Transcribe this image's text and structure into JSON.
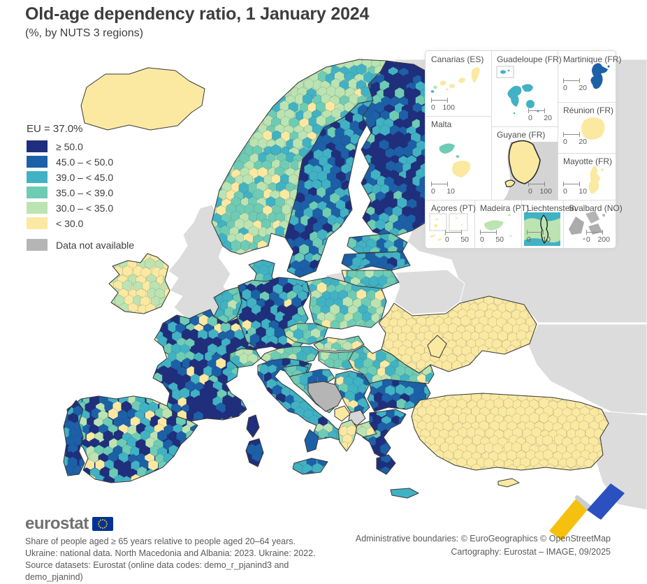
{
  "title": "Old-age dependency ratio, 1 January 2024",
  "subtitle": "(%, by NUTS 3 regions)",
  "legend": {
    "eu_value_label": "EU = 37.0%",
    "classes": [
      {
        "key": "ge50",
        "label": "≥ 50.0",
        "color": "#1f2e7d"
      },
      {
        "key": "c45_50",
        "label": "45.0 – < 50.0",
        "color": "#1c60a8"
      },
      {
        "key": "c39_45",
        "label": "39.0 – < 45.0",
        "color": "#41b2c4"
      },
      {
        "key": "c35_39",
        "label": "35.0 – < 39.0",
        "color": "#6fccb4"
      },
      {
        "key": "c30_35",
        "label": "30.0 – < 35.0",
        "color": "#bce4b2"
      },
      {
        "key": "lt30",
        "label": "< 30.0",
        "color": "#fbe9a2"
      }
    ],
    "no_data": {
      "label": "Data not available",
      "color": "#b5b5b5"
    }
  },
  "map": {
    "sea_color": "#ffffff",
    "non_eu_color": "#dcdcdc",
    "kosovo_color": "#d6d6d6",
    "border_color": "#3a3a3a",
    "countries": [
      {
        "id": "russia-north",
        "name": "Russia",
        "status": "non-eu"
      },
      {
        "id": "russia-south",
        "name": "Russia",
        "status": "non-eu"
      },
      {
        "id": "mideast",
        "name": "Middle East",
        "status": "non-eu"
      },
      {
        "id": "belarus",
        "name": "Belarus",
        "status": "non-eu"
      },
      {
        "id": "kaliningrad",
        "name": "Kaliningrad (Russia)",
        "status": "non-eu"
      },
      {
        "id": "uk",
        "name": "United Kingdom",
        "status": "non-eu"
      },
      {
        "id": "bosnia",
        "name": "Bosnia and Herzegovina",
        "status": "no-data"
      },
      {
        "id": "kosovo",
        "name": "Kosovo",
        "status": "no-data-light"
      },
      {
        "id": "iceland",
        "name": "Iceland",
        "flat": true,
        "classes": {
          "lt30": 1
        }
      },
      {
        "id": "norway",
        "name": "Norway",
        "classes": {
          "c30_35": 0.4,
          "c35_39": 0.3,
          "c39_45": 0.2,
          "lt30": 0.1
        }
      },
      {
        "id": "sweden",
        "name": "Sweden",
        "classes": {
          "c45_50": 0.4,
          "ge50": 0.2,
          "c39_45": 0.3,
          "c35_39": 0.1
        }
      },
      {
        "id": "finland",
        "name": "Finland",
        "classes": {
          "ge50": 0.4,
          "c45_50": 0.3,
          "c39_45": 0.2,
          "c35_39": 0.1
        }
      },
      {
        "id": "estonia",
        "name": "Estonia",
        "classes": {
          "c39_45": 0.5,
          "c45_50": 0.3,
          "c35_39": 0.2
        }
      },
      {
        "id": "latvia",
        "name": "Latvia",
        "classes": {
          "c45_50": 0.5,
          "c39_45": 0.3,
          "ge50": 0.2
        }
      },
      {
        "id": "lithuania",
        "name": "Lithuania",
        "classes": {
          "c39_45": 0.4,
          "c35_39": 0.4,
          "lt30": 0.1,
          "c30_35": 0.1
        }
      },
      {
        "id": "ireland",
        "name": "Ireland",
        "classes": {
          "lt30": 0.55,
          "c30_35": 0.45
        }
      },
      {
        "id": "denmark",
        "name": "Denmark",
        "classes": {
          "c39_45": 0.5,
          "c35_39": 0.5
        }
      },
      {
        "id": "germany",
        "name": "Germany",
        "classes": {
          "ge50": 0.3,
          "c45_50": 0.2,
          "c39_45": 0.3,
          "c35_39": 0.15,
          "lt30": 0.05
        }
      },
      {
        "id": "benelux",
        "name": "Benelux",
        "classes": {
          "c39_45": 0.45,
          "c35_39": 0.3,
          "c30_35": 0.15,
          "lt30": 0.1
        }
      },
      {
        "id": "poland",
        "name": "Poland",
        "classes": {
          "c30_35": 0.35,
          "c35_39": 0.35,
          "c39_45": 0.2,
          "lt30": 0.1
        }
      },
      {
        "id": "czechia",
        "name": "Czechia",
        "classes": {
          "c35_39": 0.55,
          "c39_45": 0.25,
          "c30_35": 0.1,
          "lt30": 0.1
        }
      },
      {
        "id": "slovakia",
        "name": "Slovakia",
        "classes": {
          "c30_35": 0.4,
          "c35_39": 0.35,
          "lt30": 0.15,
          "c39_45": 0.1
        }
      },
      {
        "id": "austria",
        "name": "Austria",
        "classes": {
          "c35_39": 0.5,
          "c39_45": 0.3,
          "c30_35": 0.2
        }
      },
      {
        "id": "switzerland",
        "name": "Switzerland",
        "classes": {
          "c35_39": 0.35,
          "c30_35": 0.3,
          "lt30": 0.2,
          "c39_45": 0.15
        }
      },
      {
        "id": "hungary",
        "name": "Hungary",
        "classes": {
          "c35_39": 0.5,
          "c30_35": 0.3,
          "c39_45": 0.2
        }
      },
      {
        "id": "ukraine",
        "name": "Ukraine",
        "classes": {
          "lt30": 1
        }
      },
      {
        "id": "moldova",
        "name": "Moldova",
        "flat": true,
        "classes": {
          "lt30": 1
        }
      },
      {
        "id": "romania",
        "name": "Romania",
        "classes": {
          "c35_39": 0.4,
          "c39_45": 0.3,
          "c30_35": 0.2,
          "lt30": 0.1
        }
      },
      {
        "id": "bulgaria",
        "name": "Bulgaria",
        "classes": {
          "c45_50": 0.35,
          "ge50": 0.25,
          "c39_45": 0.3,
          "c35_39": 0.1
        }
      },
      {
        "id": "france",
        "name": "France",
        "classes": {
          "ge50": 0.35,
          "c45_50": 0.2,
          "c39_45": 0.25,
          "c35_39": 0.12,
          "lt30": 0.08
        }
      },
      {
        "id": "corsica",
        "name": "Corse (France)",
        "flat": true,
        "classes": {
          "ge50": 1
        }
      },
      {
        "id": "spain",
        "name": "Spain",
        "classes": {
          "ge50": 0.25,
          "c45_50": 0.15,
          "c39_45": 0.2,
          "c35_39": 0.2,
          "c30_35": 0.1,
          "lt30": 0.1
        }
      },
      {
        "id": "portugal",
        "name": "Portugal",
        "classes": {
          "ge50": 0.5,
          "c45_50": 0.3,
          "c39_45": 0.2
        }
      },
      {
        "id": "italy",
        "name": "Italy",
        "classes": {
          "c39_45": 0.35,
          "c45_50": 0.25,
          "ge50": 0.2,
          "c35_39": 0.1,
          "c30_35": 0.1
        }
      },
      {
        "id": "calabria",
        "name": "Calabria (Italy)",
        "flat": true,
        "classes": {
          "c45_50": 1
        }
      },
      {
        "id": "sicily",
        "name": "Sicilia (Italy)",
        "classes": {
          "c39_45": 0.5,
          "c45_50": 0.3,
          "ge50": 0.2
        }
      },
      {
        "id": "sardinia",
        "name": "Sardegna (Italy)",
        "classes": {
          "ge50": 0.5,
          "c45_50": 0.5
        }
      },
      {
        "id": "slovenia",
        "name": "Slovenia",
        "classes": {
          "c35_39": 0.5,
          "c39_45": 0.5
        }
      },
      {
        "id": "croatia",
        "name": "Croatia",
        "classes": {
          "c39_45": 0.5,
          "c35_39": 0.3,
          "c45_50": 0.2
        }
      },
      {
        "id": "serbia",
        "name": "Serbia",
        "classes": {
          "c39_45": 0.35,
          "c35_39": 0.3,
          "c45_50": 0.25,
          "lt30": 0.1
        }
      },
      {
        "id": "montenegro",
        "name": "Montenegro",
        "flat": true,
        "classes": {
          "lt30": 1
        }
      },
      {
        "id": "albania",
        "name": "Albania",
        "classes": {
          "lt30": 0.6,
          "c30_35": 0.4
        }
      },
      {
        "id": "nmacedonia",
        "name": "North Macedonia",
        "classes": {
          "c30_35": 0.5,
          "lt30": 0.5
        }
      },
      {
        "id": "greece",
        "name": "Greece",
        "classes": {
          "ge50": 0.35,
          "c45_50": 0.3,
          "c39_45": 0.25,
          "c35_39": 0.1
        }
      },
      {
        "id": "peloponnese",
        "name": "Peloponnese (Greece)",
        "classes": {
          "ge50": 0.5,
          "c45_50": 0.5
        }
      },
      {
        "id": "crete",
        "name": "Crete (Greece)",
        "flat": true,
        "classes": {
          "c39_45": 1
        }
      },
      {
        "id": "turkey",
        "name": "Türkiye",
        "classes": {
          "lt30": 1
        }
      },
      {
        "id": "cyprus",
        "name": "Cyprus",
        "flat": true,
        "classes": {
          "lt30": 1
        }
      }
    ]
  },
  "insets": {
    "cells": [
      {
        "label": "Canarias (ES)",
        "scale0": "0",
        "scale1": "100"
      },
      {
        "label": "Guadeloupe (FR)",
        "scale0": "0",
        "scale1": "20"
      },
      {
        "label": "Martinique (FR)",
        "scale0": "0",
        "scale1": "20"
      },
      {
        "label": "Malta",
        "scale0": "0",
        "scale1": "10"
      },
      {
        "label": "Guyane (FR)",
        "scale0": "0",
        "scale1": "100"
      },
      {
        "label": "Réunion (FR)",
        "scale0": "0",
        "scale1": "20"
      },
      {
        "label": "Mayotte (FR)",
        "scale0": "0",
        "scale1": "10"
      },
      {
        "label": "Açores (PT)",
        "scale0": "0",
        "scale1": "50"
      },
      {
        "label": "Madeira (PT)",
        "scale0": "0",
        "scale1": "50"
      },
      {
        "label": "Liechtenstein",
        "scale0": "0",
        "scale1": "10"
      },
      {
        "label": "Svalbard (NO)",
        "scale0": "0",
        "scale1": "200"
      }
    ]
  },
  "footer": {
    "logo_text": "eurostat",
    "note1": "Share of people aged ≥ 65 years relative to people aged 20–64 years.",
    "note2": "Ukraine: national data. North Macedonia and Albania: 2023. Ukraine: 2022.",
    "note3": "Source datasets: Eurostat (online data codes: demo_r_pjanind3 and demo_pjanind)",
    "right1": "Administrative boundaries: © EuroGeographics © OpenStreetMap",
    "right2": "Cartography: Eurostat – IMAGE, 09/2025"
  }
}
